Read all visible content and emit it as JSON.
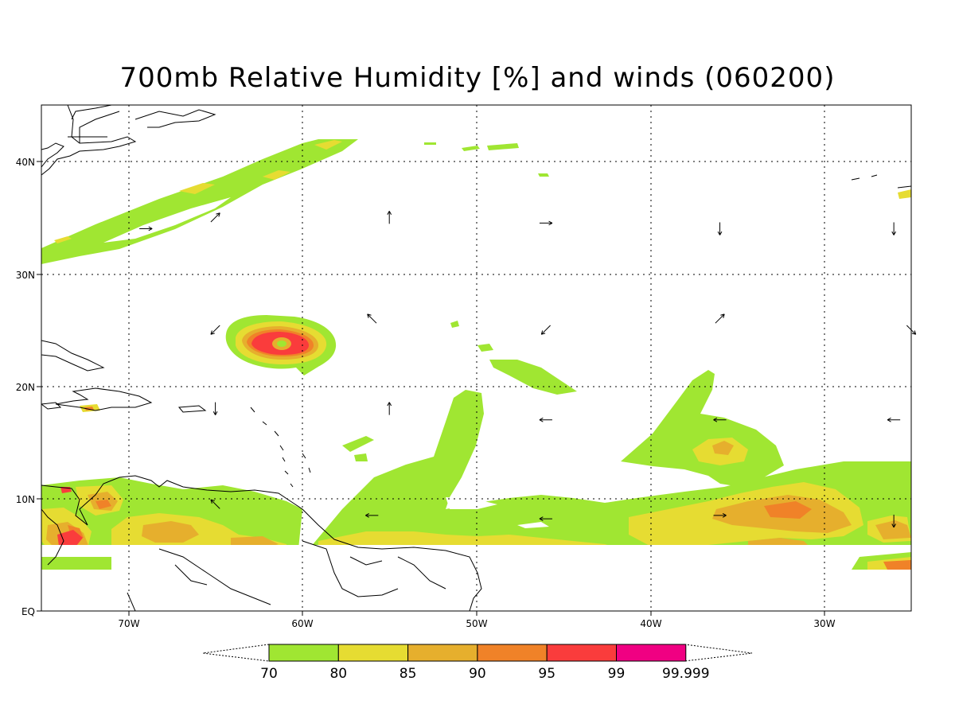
{
  "title": "700mb Relative Humidity [%] and winds (060200)",
  "lat_labels": [
    "EQ",
    "10N",
    "20N",
    "30N",
    "40N"
  ],
  "lon_labels": [
    "70W",
    "60W",
    "50W",
    "40W",
    "30W"
  ],
  "colors": {
    "c70": "#a0e632",
    "c80": "#e6dc32",
    "c85": "#e6af2d",
    "c90": "#f08228",
    "c95": "#fa3c3c",
    "c99": "#f00082"
  },
  "colorbar": {
    "labels": [
      "70",
      "80",
      "85",
      "90",
      "95",
      "99",
      "99.999"
    ],
    "swatches": [
      "#a0e632",
      "#e6dc32",
      "#e6af2d",
      "#f08228",
      "#fa3c3c",
      "#f00082"
    ]
  },
  "chart_data": {
    "type": "heatmap",
    "title": "700mb Relative Humidity [%] and winds (060200)",
    "xlim_deg_lon": [
      -75,
      -25
    ],
    "ylim_deg_lat": [
      0,
      45
    ],
    "x_ticks": [
      "70W",
      "60W",
      "50W",
      "40W",
      "30W"
    ],
    "y_ticks": [
      "EQ",
      "10N",
      "20N",
      "30N",
      "40N"
    ],
    "levels": [
      70,
      80,
      85,
      90,
      95,
      99,
      99.999
    ],
    "features": [
      {
        "name": "tropical cyclone",
        "center_lon": -61,
        "center_lat": 24,
        "max_rh": 99
      },
      {
        "name": "mid-latitude moist band",
        "from_lon": -75,
        "to_lon": -57,
        "from_lat": 31,
        "to_lat": 42
      },
      {
        "name": "ITCZ band",
        "from_lon": -75,
        "to_lon": -25,
        "lat_range": [
          5,
          12
        ]
      }
    ],
    "winds": [
      {
        "lon": -69,
        "lat": 34,
        "dir": "E"
      },
      {
        "lon": -65,
        "lat": 35,
        "dir": "NE"
      },
      {
        "lon": -55,
        "lat": 35,
        "dir": "N"
      },
      {
        "lon": -46,
        "lat": 34.5,
        "dir": "E"
      },
      {
        "lon": -36,
        "lat": 34,
        "dir": "S"
      },
      {
        "lon": -26,
        "lat": 34,
        "dir": "S"
      },
      {
        "lon": -65,
        "lat": 25,
        "dir": "SW"
      },
      {
        "lon": -56,
        "lat": 26,
        "dir": "NW"
      },
      {
        "lon": -46,
        "lat": 25,
        "dir": "SW"
      },
      {
        "lon": -36,
        "lat": 26,
        "dir": "NE"
      },
      {
        "lon": -25,
        "lat": 25,
        "dir": "SE"
      },
      {
        "lon": -65,
        "lat": 18,
        "dir": "S"
      },
      {
        "lon": -55,
        "lat": 18,
        "dir": "N"
      },
      {
        "lon": -46,
        "lat": 17,
        "dir": "W"
      },
      {
        "lon": -36,
        "lat": 17,
        "dir": "W"
      },
      {
        "lon": -26,
        "lat": 17,
        "dir": "W"
      },
      {
        "lon": -65,
        "lat": 9.5,
        "dir": "NW"
      },
      {
        "lon": -56,
        "lat": 8.5,
        "dir": "W"
      },
      {
        "lon": -46,
        "lat": 8.2,
        "dir": "W"
      },
      {
        "lon": -36,
        "lat": 8.5,
        "dir": "E"
      },
      {
        "lon": -26,
        "lat": 8,
        "dir": "S"
      }
    ]
  }
}
